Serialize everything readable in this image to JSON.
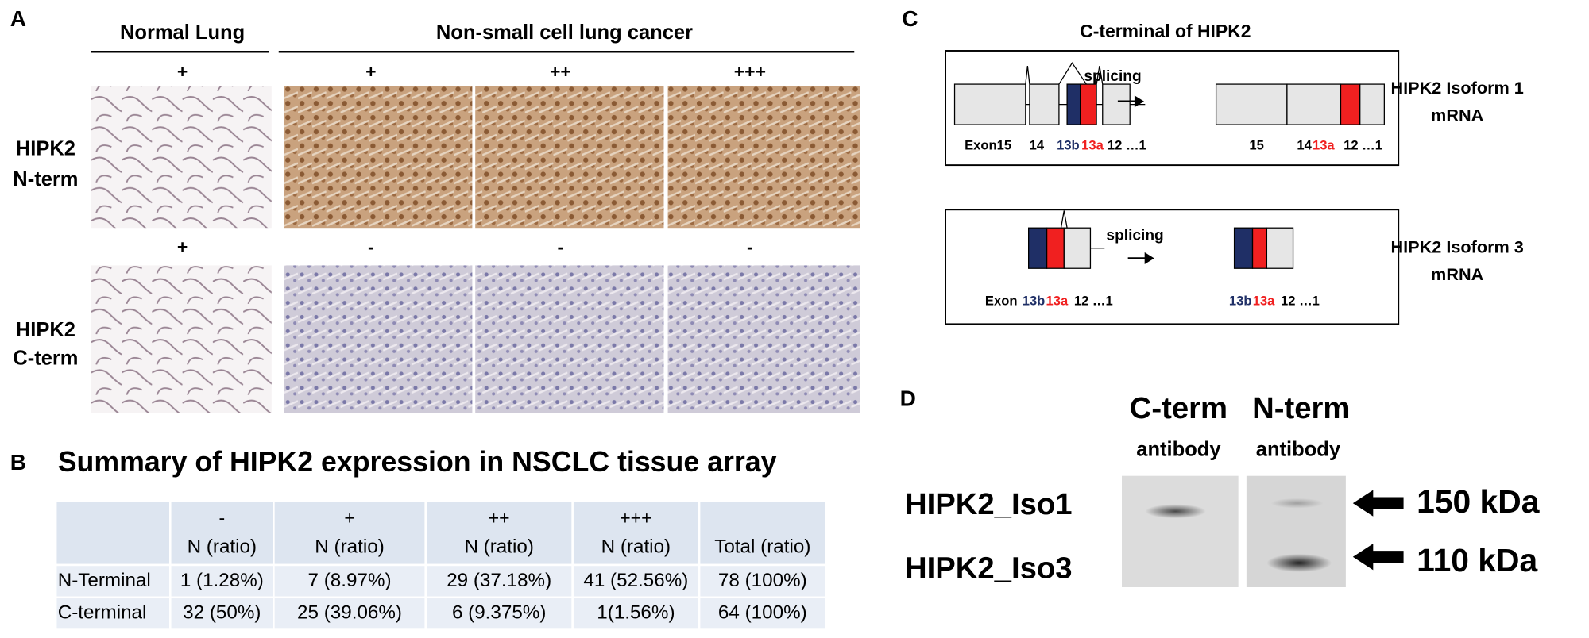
{
  "panel_a": {
    "letter": "A",
    "group_headers": [
      "Normal Lung",
      "Non-small cell lung cancer"
    ],
    "rows": [
      {
        "label": [
          "HIPK2",
          "N-term"
        ],
        "scores": [
          "+",
          "+",
          "++",
          "+++"
        ]
      },
      {
        "label": [
          "HIPK2",
          "C-term"
        ],
        "scores": [
          "+",
          "-",
          "-",
          "-"
        ]
      }
    ]
  },
  "panel_b": {
    "letter": "B",
    "title": "Summary of HIPK2 expression in NSCLC tissue array",
    "columns": [
      {
        "score": "-",
        "label": "N (ratio)"
      },
      {
        "score": "+",
        "label": "N (ratio)"
      },
      {
        "score": "++",
        "label": "N (ratio)"
      },
      {
        "score": "+++",
        "label": "N (ratio)"
      },
      {
        "label": "Total (ratio)"
      }
    ],
    "rows": [
      {
        "label": "N-Terminal",
        "cells": [
          "1 (1.28%)",
          "7 (8.97%)",
          "29 (37.18%)",
          "41 (52.56%)",
          "78 (100%)"
        ]
      },
      {
        "label": "C-terminal",
        "cells": [
          "32 (50%)",
          "25 (39.06%)",
          "6 (9.375%)",
          "1(1.56%)",
          "64 (100%)"
        ]
      }
    ]
  },
  "panel_c": {
    "letter": "C",
    "title": "C-terminal of HIPK2",
    "isoform1": {
      "splicing": "splicing",
      "name": [
        "HIPK2 Isoform 1",
        "mRNA"
      ],
      "pre": [
        "Exon15",
        "14",
        "13b",
        "13a",
        "12 …1"
      ],
      "post": [
        "15",
        "14",
        "13a",
        "12 …1"
      ]
    },
    "isoform3": {
      "splicing": "splicing",
      "name": [
        "HIPK2 Isoform 3",
        "mRNA"
      ],
      "pre": [
        "Exon",
        "13b",
        "13a",
        "12 …1"
      ],
      "post": [
        "13b",
        "13a",
        "12 …1"
      ]
    }
  },
  "panel_d": {
    "letter": "D",
    "columns": [
      {
        "target": "C-term",
        "sub": "antibody"
      },
      {
        "target": "N-term",
        "sub": "antibody"
      }
    ],
    "bands": [
      {
        "name": "HIPK2_Iso1",
        "size": "150 kDa"
      },
      {
        "name": "HIPK2_Iso3",
        "size": "110 kDa"
      }
    ]
  }
}
